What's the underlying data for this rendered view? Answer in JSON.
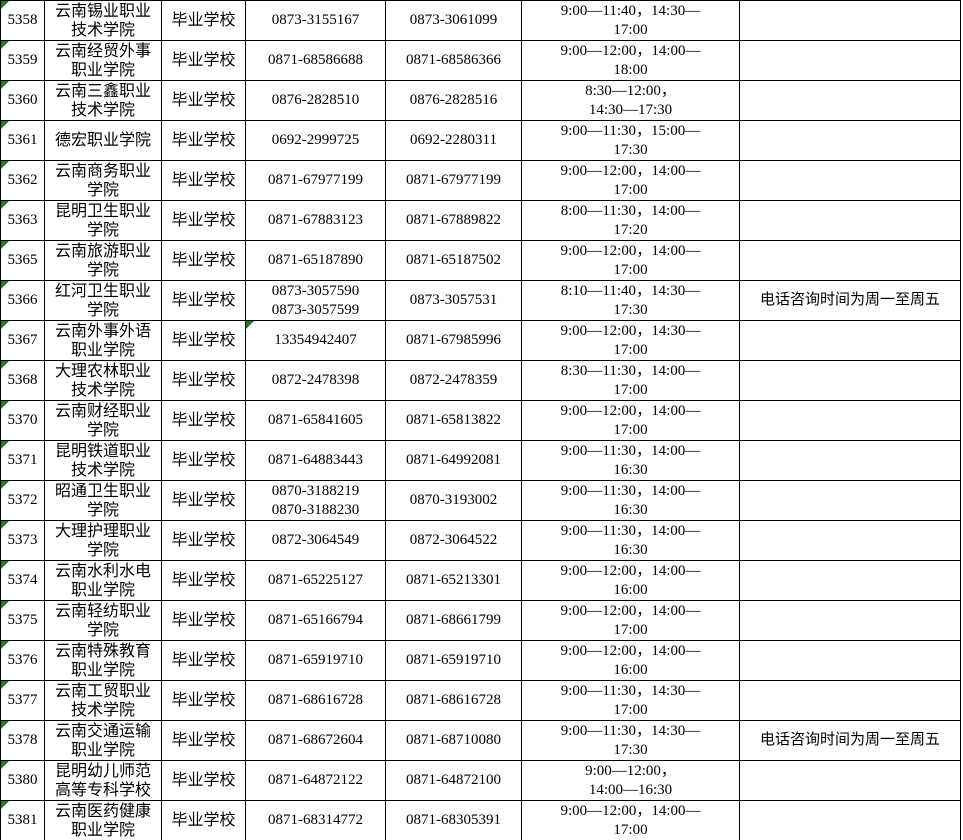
{
  "colors": {
    "background": "#ffffff",
    "gridline": "#000000",
    "error_indicator_green": "#1e7e1e",
    "text": "#000000"
  },
  "table": {
    "description_columns": [
      "row_id",
      "school_name",
      "school_type",
      "phone_1",
      "phone_2",
      "consult_time",
      "note"
    ],
    "rows": [
      {
        "id": "5358",
        "name": "云南锡业职业\n技术学院",
        "type": "毕业学校",
        "phone1": "0873-3155167",
        "phone2": "0873-3061099",
        "time": "9:00—11:40，14:30—\n17:00",
        "note": "",
        "triangles": [
          "id"
        ]
      },
      {
        "id": "5359",
        "name": "云南经贸外事\n职业学院",
        "type": "毕业学校",
        "phone1": "0871-68586688",
        "phone2": "0871-68586366",
        "time": "9:00—12:00，14:00—\n18:00",
        "note": "",
        "triangles": [
          "id"
        ]
      },
      {
        "id": "5360",
        "name": "云南三鑫职业\n技术学院",
        "type": "毕业学校",
        "phone1": "0876-2828510",
        "phone2": "0876-2828516",
        "time": "8:30—12:00，\n14:30—17:30",
        "note": "",
        "triangles": [
          "id"
        ]
      },
      {
        "id": "5361",
        "name": "德宏职业学院",
        "type": "毕业学校",
        "phone1": "0692-2999725",
        "phone2": "0692-2280311",
        "time": "9:00—11:30，15:00—\n17:30",
        "note": "",
        "triangles": [
          "id"
        ]
      },
      {
        "id": "5362",
        "name": "云南商务职业\n学院",
        "type": "毕业学校",
        "phone1": "0871-67977199",
        "phone2": "0871-67977199",
        "time": "9:00—12:00，14:00—\n17:00",
        "note": "",
        "triangles": [
          "id"
        ]
      },
      {
        "id": "5363",
        "name": "昆明卫生职业\n学院",
        "type": "毕业学校",
        "phone1": "0871-67883123",
        "phone2": "0871-67889822",
        "time": "8:00—11:30，14:00—\n17:20",
        "note": "",
        "triangles": [
          "id"
        ]
      },
      {
        "id": "5365",
        "name": "云南旅游职业\n学院",
        "type": "毕业学校",
        "phone1": "0871-65187890",
        "phone2": "0871-65187502",
        "time": "9:00—12:00，14:00—\n17:00",
        "note": "",
        "triangles": [
          "id"
        ]
      },
      {
        "id": "5366",
        "name": "红河卫生职业\n学院",
        "type": "毕业学校",
        "phone1": "0873-3057590\n0873-3057599",
        "phone2": "0873-3057531",
        "time": "8:10—11:40，14:30—\n17:30",
        "note": "电话咨询时间为周一至周五",
        "triangles": [
          "id"
        ]
      },
      {
        "id": "5367",
        "name": "云南外事外语\n职业学院",
        "type": "毕业学校",
        "phone1": "13354942407",
        "phone2": "0871-67985996",
        "time": "9:00—12:00，14:30—\n17:00",
        "note": "",
        "triangles": [
          "id",
          "phone1"
        ]
      },
      {
        "id": "5368",
        "name": "大理农林职业\n技术学院",
        "type": "毕业学校",
        "phone1": "0872-2478398",
        "phone2": "0872-2478359",
        "time": "8:30—11:30，14:00—\n17:00",
        "note": "",
        "triangles": [
          "id"
        ]
      },
      {
        "id": "5370",
        "name": "云南财经职业\n学院",
        "type": "毕业学校",
        "phone1": "0871-65841605",
        "phone2": "0871-65813822",
        "time": "9:00—12:00，14:00—\n17:00",
        "note": "",
        "triangles": [
          "id"
        ]
      },
      {
        "id": "5371",
        "name": "昆明铁道职业\n技术学院",
        "type": "毕业学校",
        "phone1": "0871-64883443",
        "phone2": "0871-64992081",
        "time": "9:00—11:30，14:00—\n16:30",
        "note": "",
        "triangles": [
          "id"
        ]
      },
      {
        "id": "5372",
        "name": "昭通卫生职业\n学院",
        "type": "毕业学校",
        "phone1": "0870-3188219\n0870-3188230",
        "phone2": "0870-3193002",
        "time": "9:00—11:30，14:00—\n16:30",
        "note": "",
        "triangles": [
          "id"
        ]
      },
      {
        "id": "5373",
        "name": "大理护理职业\n学院",
        "type": "毕业学校",
        "phone1": "0872-3064549",
        "phone2": "0872-3064522",
        "time": "9:00—11:30，14:00—\n16:30",
        "note": "",
        "triangles": [
          "id"
        ]
      },
      {
        "id": "5374",
        "name": "云南水利水电\n职业学院",
        "type": "毕业学校",
        "phone1": "0871-65225127",
        "phone2": "0871-65213301",
        "time": "9:00—12:00，14:00—\n16:00",
        "note": "",
        "triangles": [
          "id"
        ]
      },
      {
        "id": "5375",
        "name": "云南轻纺职业\n学院",
        "type": "毕业学校",
        "phone1": "0871-65166794",
        "phone2": "0871-68661799",
        "time": "9:00—12:00，14:00—\n17:00",
        "note": "",
        "triangles": [
          "id"
        ]
      },
      {
        "id": "5376",
        "name": "云南特殊教育\n职业学院",
        "type": "毕业学校",
        "phone1": "0871-65919710",
        "phone2": "0871-65919710",
        "time": "9:00—12:00，14:00—\n16:00",
        "note": "",
        "triangles": [
          "id"
        ]
      },
      {
        "id": "5377",
        "name": "云南工贸职业\n技术学院",
        "type": "毕业学校",
        "phone1": "0871-68616728",
        "phone2": "0871-68616728",
        "time": "9:00—11:30，14:30—\n17:00",
        "note": "",
        "triangles": [
          "id"
        ]
      },
      {
        "id": "5378",
        "name": "云南交通运输\n职业学院",
        "type": "毕业学校",
        "phone1": "0871-68672604",
        "phone2": "0871-68710080",
        "time": "9:00—11:30，14:30—\n17:30",
        "note": "电话咨询时间为周一至周五",
        "triangles": [
          "id"
        ]
      },
      {
        "id": "5380",
        "name": "昆明幼儿师范\n高等专科学校",
        "type": "毕业学校",
        "phone1": "0871-64872122",
        "phone2": "0871-64872100",
        "time": "9:00—12:00，\n14:00—16:30",
        "note": "",
        "triangles": [
          "id"
        ]
      },
      {
        "id": "5381",
        "name": "云南医药健康\n职业学院",
        "type": "毕业学校",
        "phone1": "0871-68314772",
        "phone2": "0871-68305391",
        "time": "9:00—12:00，14:00—\n17:00",
        "note": "",
        "triangles": [
          "id"
        ]
      }
    ]
  }
}
